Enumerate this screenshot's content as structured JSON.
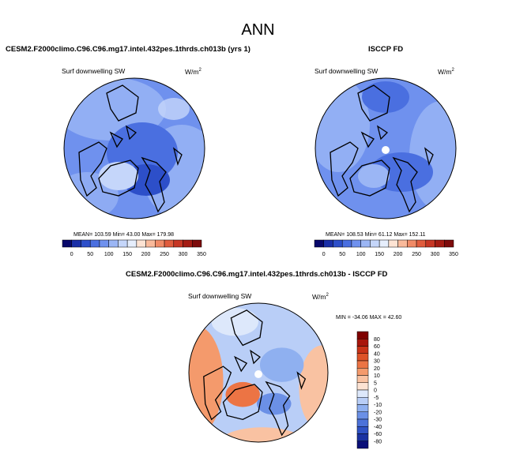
{
  "figure": {
    "title": "ANN",
    "panel1_title": "CESM2.F2000climo.C96.C96.mg17.intel.432pes.1thrds.ch013b (yrs 1)",
    "panel2_title": "ISCCP FD",
    "diff_title": "CESM2.F2000climo.C96.C96.mg17.intel.432pes.1thrds.ch013b - ISCCP FD",
    "variable": "Surf downwelling SW",
    "units": "W/m",
    "units_sup": "2"
  },
  "chart_data": [
    {
      "type": "heatmap",
      "projection": "north-polar-stereographic",
      "title": "CESM2.F2000climo.C96.C96.mg17.intel.432pes.1thrds.ch013b (yrs 1)",
      "variable": "Surf downwelling SW",
      "units": "W/m2",
      "stats_text": "MEAN= 103.59  Min=  43.00  Max= 179.98",
      "mean": 103.59,
      "min": 43.0,
      "max": 179.98,
      "colorbar": {
        "levels": [
          "0",
          "50",
          "100",
          "150",
          "200",
          "250",
          "300",
          "350"
        ],
        "colors": [
          "#08086b",
          "#1a2fa8",
          "#2d4fc9",
          "#4a6fe0",
          "#6f91ee",
          "#9bb6f5",
          "#c5d6fa",
          "#e6eefc",
          "#fde3d3",
          "#f9b99a",
          "#f08a66",
          "#e05c3d",
          "#c63624",
          "#a41b13",
          "#7d0b0b"
        ]
      }
    },
    {
      "type": "heatmap",
      "projection": "north-polar-stereographic",
      "title": "ISCCP FD",
      "variable": "Surf downwelling SW",
      "units": "W/m2",
      "stats_text": "MEAN= 108.53  Min=  61.12  Max= 152.11",
      "mean": 108.53,
      "min": 61.12,
      "max": 152.11,
      "colorbar": {
        "levels": [
          "0",
          "50",
          "100",
          "150",
          "200",
          "250",
          "300",
          "350"
        ],
        "colors": [
          "#08086b",
          "#1a2fa8",
          "#2d4fc9",
          "#4a6fe0",
          "#6f91ee",
          "#9bb6f5",
          "#c5d6fa",
          "#e6eefc",
          "#fde3d3",
          "#f9b99a",
          "#f08a66",
          "#e05c3d",
          "#c63624",
          "#a41b13",
          "#7d0b0b"
        ]
      }
    },
    {
      "type": "heatmap",
      "projection": "north-polar-stereographic",
      "title": "CESM2.F2000climo.C96.C96.mg17.intel.432pes.1thrds.ch013b - ISCCP FD",
      "variable": "Surf downwelling SW",
      "units": "W/m2",
      "stats_text": "MIN = -34.06 MAX =  42.60",
      "min": -34.06,
      "max": 42.6,
      "colorbar": {
        "orientation": "vertical",
        "levels": [
          "80",
          "60",
          "40",
          "30",
          "20",
          "10",
          "5",
          "0",
          "-5",
          "-10",
          "-20",
          "-30",
          "-40",
          "-60",
          "-80"
        ],
        "colors": [
          "#7f0000",
          "#a8160c",
          "#c93318",
          "#de5328",
          "#ec7444",
          "#f49a6c",
          "#f9c2a2",
          "#fde3d3",
          "#dde8fb",
          "#b9cef7",
          "#8fb0f0",
          "#6b90e6",
          "#4c72d9",
          "#2f52c4",
          "#1a32a2",
          "#0a0f78"
        ]
      }
    }
  ]
}
